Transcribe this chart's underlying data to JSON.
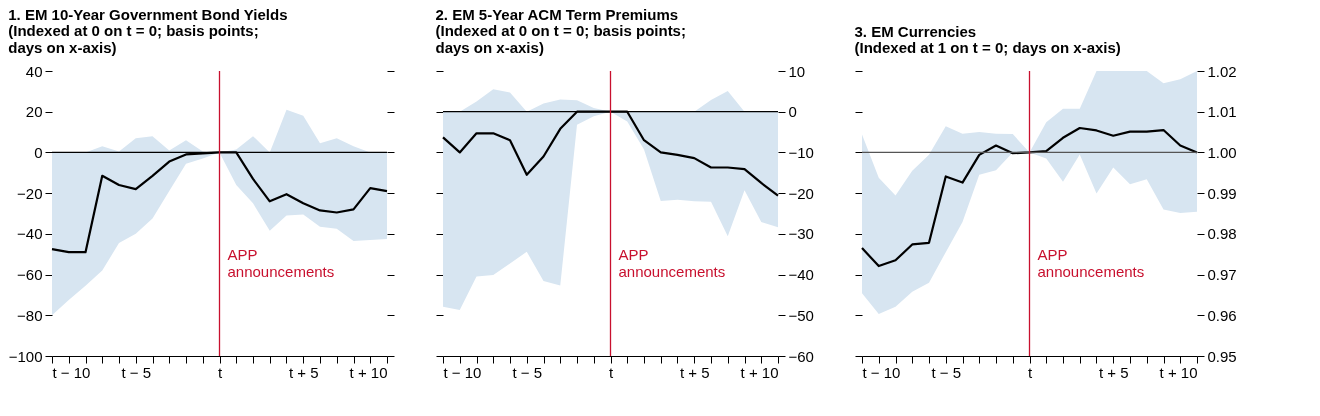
{
  "chart_data": [
    {
      "type": "line",
      "title": "1. EM 10-Year Government Bond Yields",
      "subtitle": "(Indexed at 0 on t = 0; basis points;\ndays on x-axis)",
      "x": [
        -10,
        -9,
        -8,
        -7,
        -6,
        -5,
        -4,
        -3,
        -2,
        -1,
        0,
        1,
        2,
        3,
        4,
        5,
        6,
        7,
        8,
        9,
        10
      ],
      "series": [
        {
          "color": "#000000",
          "values": [
            -47.5,
            -49,
            -49,
            -11.5,
            -16,
            -18,
            -11.5,
            -4.5,
            -1,
            -0.5,
            0,
            0,
            -13,
            -24,
            -20.5,
            -25,
            -28.5,
            -29.5,
            -28,
            -17.5,
            -19
          ],
          "lower": [
            -80,
            -72.5,
            -65.5,
            -58,
            -44.5,
            -40,
            -32.5,
            -19,
            -5.5,
            -3,
            0,
            -16,
            -25,
            -38.5,
            -31,
            -30.5,
            -36.5,
            -37.5,
            -43.5,
            -43,
            -42.5
          ],
          "upper": [
            0,
            0,
            0,
            3,
            0.5,
            7,
            8,
            1,
            6,
            0.5,
            0,
            1.5,
            8,
            0,
            21,
            18,
            4.5,
            7,
            3,
            0,
            0
          ]
        }
      ],
      "xlim": [
        -10,
        10
      ],
      "xticks": [
        {
          "value": -10,
          "label": "t − 10"
        },
        {
          "value": -9,
          "label": null
        },
        {
          "value": -8,
          "label": null
        },
        {
          "value": -7,
          "label": null
        },
        {
          "value": -6,
          "label": null
        },
        {
          "value": -5,
          "label": "t − 5"
        },
        {
          "value": -4,
          "label": null
        },
        {
          "value": -3,
          "label": null
        },
        {
          "value": -2,
          "label": null
        },
        {
          "value": -1,
          "label": null
        },
        {
          "value": 0,
          "label": "t"
        },
        {
          "value": 1,
          "label": null
        },
        {
          "value": 2,
          "label": null
        },
        {
          "value": 3,
          "label": null
        },
        {
          "value": 4,
          "label": null
        },
        {
          "value": 5,
          "label": "t + 5"
        },
        {
          "value": 6,
          "label": null
        },
        {
          "value": 7,
          "label": null
        },
        {
          "value": 8,
          "label": null
        },
        {
          "value": 9,
          "label": null
        },
        {
          "value": 10,
          "label": "t + 10"
        }
      ],
      "ylim": [
        -100,
        40
      ],
      "yticks": [
        {
          "value": -100,
          "label": "−100"
        },
        {
          "value": -80,
          "label": "−80"
        },
        {
          "value": -60,
          "label": "−60"
        },
        {
          "value": -40,
          "label": "−40"
        },
        {
          "value": -20,
          "label": "−20"
        },
        0,
        20,
        40
      ],
      "ref_lines": [
        {
          "axis": "y",
          "value": 0,
          "color": "#000000"
        },
        {
          "axis": "x",
          "value": 0,
          "label": "APP announcements",
          "color": "#c8102e"
        }
      ],
      "grid": false
    },
    {
      "type": "line",
      "title": "2. EM 5-Year ACM Term Premiums",
      "subtitle": "(Indexed at 0 on t = 0; basis points;\ndays on x-axis)",
      "x": [
        -10,
        -9,
        -8,
        -7,
        -6,
        -5,
        -4,
        -3,
        -2,
        -1,
        0,
        1,
        2,
        3,
        4,
        5,
        6,
        7,
        8,
        9,
        10
      ],
      "series": [
        {
          "color": "#000000",
          "values": [
            -6.3,
            -10,
            -5.3,
            -5.3,
            -7,
            -15.5,
            -11,
            -4.2,
            0,
            0,
            0,
            0,
            -7,
            -10,
            -10.6,
            -11.4,
            -13.7,
            -13.7,
            -14.1,
            -17.5,
            -20.6
          ],
          "lower": [
            -47.9,
            -48.7,
            -40.5,
            -40.1,
            -37.3,
            -34.4,
            -41.6,
            -42.7,
            -3.2,
            -1.1,
            0,
            -2.4,
            -9.3,
            -21.9,
            -21.6,
            -22,
            -22.1,
            -30.6,
            -19.3,
            -27.1,
            -28.4
          ],
          "upper": [
            0,
            0,
            2.5,
            5.5,
            4.7,
            0,
            2,
            3,
            2.8,
            0.9,
            0,
            0,
            0,
            0,
            0,
            0,
            2.9,
            5.1,
            0,
            0,
            0
          ]
        }
      ],
      "xlim": [
        -10,
        10
      ],
      "xticks": [
        {
          "value": -10,
          "label": "t − 10"
        },
        {
          "value": -9,
          "label": null
        },
        {
          "value": -8,
          "label": null
        },
        {
          "value": -7,
          "label": null
        },
        {
          "value": -6,
          "label": null
        },
        {
          "value": -5,
          "label": "t − 5"
        },
        {
          "value": -4,
          "label": null
        },
        {
          "value": -3,
          "label": null
        },
        {
          "value": -2,
          "label": null
        },
        {
          "value": -1,
          "label": null
        },
        {
          "value": 0,
          "label": "t"
        },
        {
          "value": 1,
          "label": null
        },
        {
          "value": 2,
          "label": null
        },
        {
          "value": 3,
          "label": null
        },
        {
          "value": 4,
          "label": null
        },
        {
          "value": 5,
          "label": "t + 5"
        },
        {
          "value": 6,
          "label": null
        },
        {
          "value": 7,
          "label": null
        },
        {
          "value": 8,
          "label": null
        },
        {
          "value": 9,
          "label": null
        },
        {
          "value": 10,
          "label": "t + 10"
        }
      ],
      "ylim": [
        -60,
        10
      ],
      "yticks": [
        {
          "value": -60,
          "label": "−60"
        },
        {
          "value": -50,
          "label": "−50"
        },
        {
          "value": -40,
          "label": "−40"
        },
        {
          "value": -30,
          "label": "−30"
        },
        {
          "value": -20,
          "label": "−20"
        },
        {
          "value": -10,
          "label": "−10"
        },
        0,
        10
      ],
      "ref_lines": [
        {
          "axis": "y",
          "value": 0,
          "color": "#000000"
        },
        {
          "axis": "x",
          "value": 0,
          "label": "APP announcements",
          "color": "#c8102e"
        }
      ],
      "grid": false
    },
    {
      "type": "line",
      "title": "3. EM Currencies",
      "subtitle": "(Indexed at 1 on t = 0; days on x-axis)",
      "x": [
        -10,
        -9,
        -8,
        -7,
        -6,
        -5,
        -4,
        -3,
        -2,
        -1,
        0,
        1,
        2,
        3,
        4,
        5,
        6,
        7,
        8,
        9,
        10
      ],
      "series": [
        {
          "color": "#000000",
          "values": [
            0.9765,
            0.9721,
            0.9735,
            0.9774,
            0.9778,
            0.9941,
            0.9926,
            0.9994,
            1.0017,
            0.9998,
            1.0,
            1.0003,
            1.0036,
            1.006,
            1.0054,
            1.0041,
            1.0051,
            1.0051,
            1.0055,
            1.0017,
            1.0
          ],
          "lower": [
            0.9654,
            0.9603,
            0.9621,
            0.9658,
            0.968,
            0.9755,
            0.9829,
            0.9945,
            0.9956,
            1.0,
            1.0,
            0.9985,
            0.9928,
            0.9995,
            0.9899,
            0.9963,
            0.9922,
            0.9934,
            0.986,
            0.9851,
            0.9854
          ],
          "upper": [
            1.0044,
            0.9938,
            0.9894,
            0.9955,
            0.9994,
            1.0064,
            1.0046,
            1.005,
            1.0046,
            1.0045,
            1.0,
            1.0074,
            1.0107,
            1.0107,
            1.02,
            1.02,
            1.02,
            1.02,
            1.017,
            1.018,
            1.02
          ]
        }
      ],
      "xlim": [
        -10,
        10
      ],
      "xticks": [
        {
          "value": -10,
          "label": "t − 10"
        },
        {
          "value": -9,
          "label": null
        },
        {
          "value": -8,
          "label": null
        },
        {
          "value": -7,
          "label": null
        },
        {
          "value": -6,
          "label": null
        },
        {
          "value": -5,
          "label": "t − 5"
        },
        {
          "value": -4,
          "label": null
        },
        {
          "value": -3,
          "label": null
        },
        {
          "value": -2,
          "label": null
        },
        {
          "value": -1,
          "label": null
        },
        {
          "value": 0,
          "label": "t"
        },
        {
          "value": 1,
          "label": null
        },
        {
          "value": 2,
          "label": null
        },
        {
          "value": 3,
          "label": null
        },
        {
          "value": 4,
          "label": null
        },
        {
          "value": 5,
          "label": "t + 5"
        },
        {
          "value": 6,
          "label": null
        },
        {
          "value": 7,
          "label": null
        },
        {
          "value": 8,
          "label": null
        },
        {
          "value": 9,
          "label": null
        },
        {
          "value": 10,
          "label": "t + 10"
        }
      ],
      "ylim": [
        0.95,
        1.02
      ],
      "yticks": [
        {
          "value": 0.95,
          "label": "0.95"
        },
        {
          "value": 0.96,
          "label": "0.96"
        },
        {
          "value": 0.97,
          "label": "0.97"
        },
        {
          "value": 0.98,
          "label": "0.98"
        },
        {
          "value": 0.99,
          "label": "0.99"
        },
        {
          "value": 1.0,
          "label": "1.00"
        },
        {
          "value": 1.01,
          "label": "1.01"
        },
        {
          "value": 1.02,
          "label": "1.02"
        }
      ],
      "ref_lines": [
        {
          "axis": "y",
          "value": 1.0,
          "color": "#555555"
        },
        {
          "axis": "x",
          "value": 0,
          "label": "APP announcements",
          "color": "#c8102e"
        }
      ],
      "grid": false
    }
  ]
}
